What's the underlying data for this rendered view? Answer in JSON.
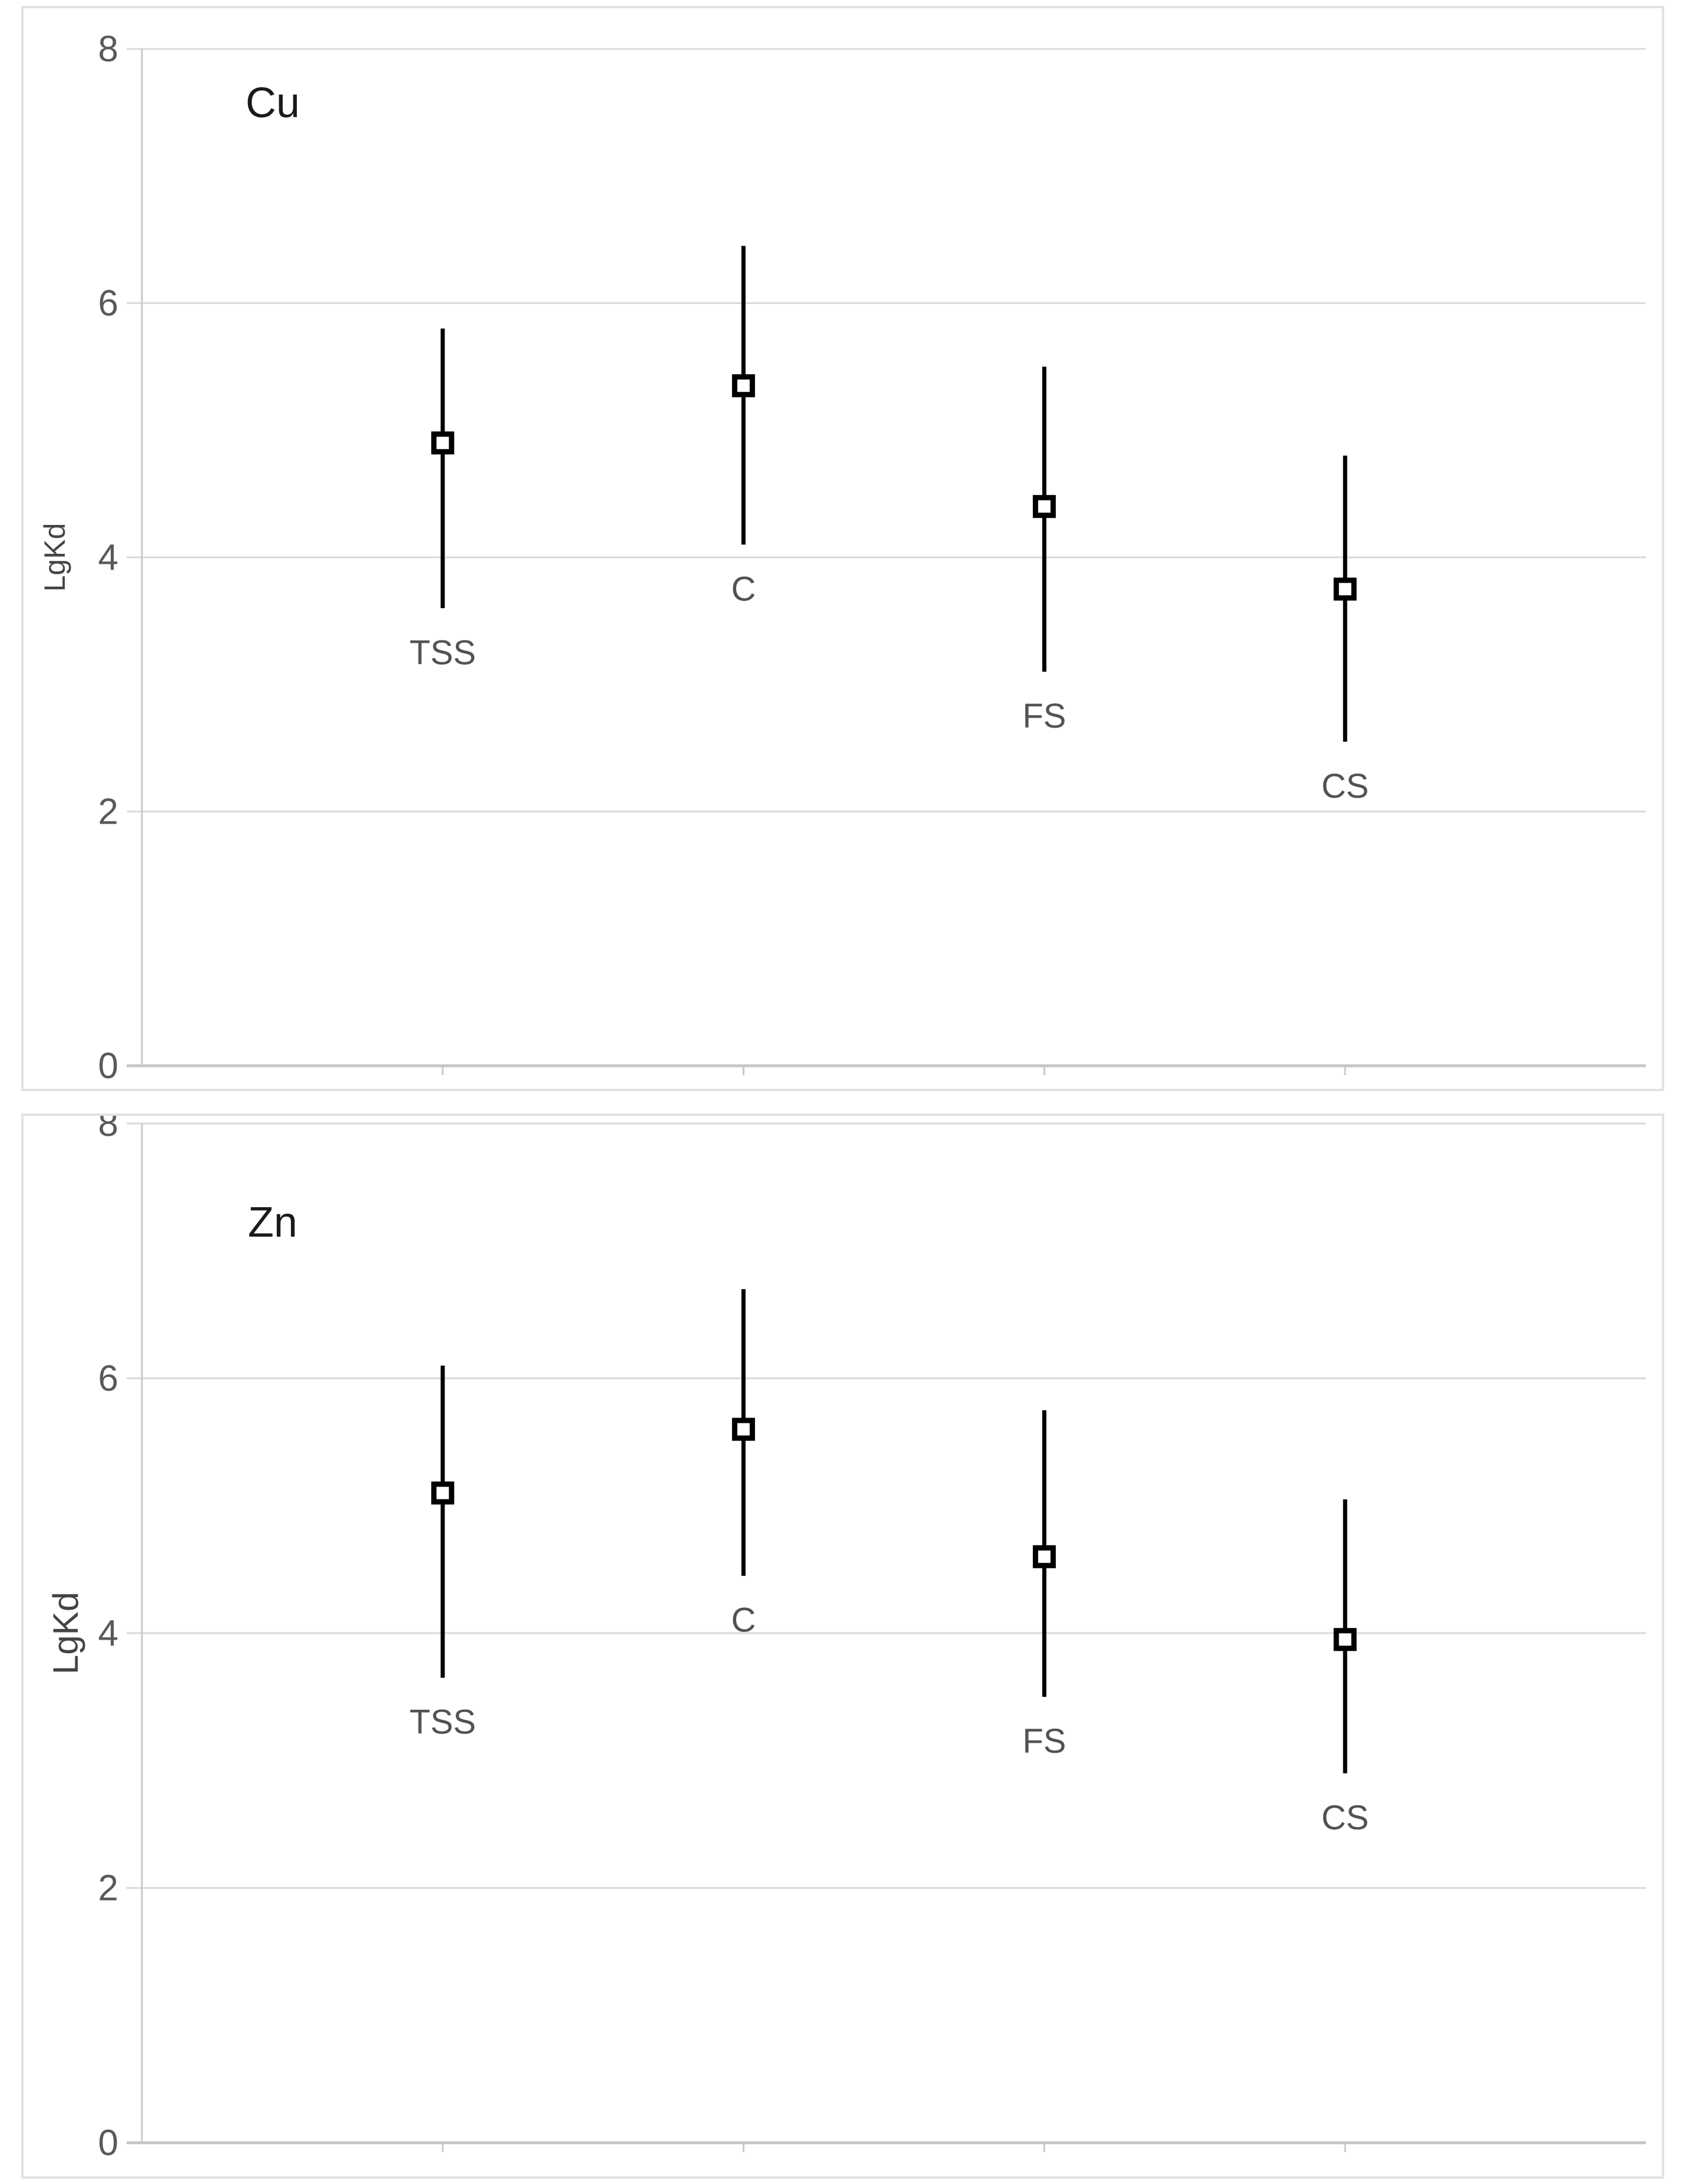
{
  "figure": {
    "description": "Two stacked scatter charts of LgKd (distribution coefficient, log) for Cu and Zn across four fractions, shown as open square markers with vertical min-max error bars",
    "background": "#ffffff"
  },
  "style": {
    "panel_border_color": "#e2e2e2",
    "gridline_color": "#dadada",
    "axis_line_color": "#c9c9c9",
    "zero_line_color": "#c6c6c6",
    "error_bar_color": "#000000",
    "marker_stroke_color": "#000000",
    "marker_fill_color": "#ffffff",
    "tick_label_color": "#595959",
    "category_label_color": "#525252",
    "title_color": "#1a1a1a",
    "ylabel_color": "#444444"
  },
  "chart_data": [
    {
      "type": "scatter",
      "title": "Cu",
      "ylabel": "LgKd",
      "xlabel": "",
      "ylim": [
        0,
        8
      ],
      "yticks": [
        0,
        2,
        4,
        6,
        8
      ],
      "ytick_labels": [
        "0",
        "2",
        "4",
        "6",
        "8"
      ],
      "grid": true,
      "legend": "none",
      "marker": "open-square",
      "error_bars": "min-max range, no caps",
      "categories": [
        "TSS",
        "C",
        "FS",
        "CS"
      ],
      "series": [
        {
          "name": "Cu LgKd mean with range",
          "points": [
            {
              "category": "TSS",
              "mean": 4.9,
              "low": 3.6,
              "high": 5.8
            },
            {
              "category": "C",
              "mean": 5.35,
              "low": 4.1,
              "high": 6.45
            },
            {
              "category": "FS",
              "mean": 4.4,
              "low": 3.1,
              "high": 5.5
            },
            {
              "category": "CS",
              "mean": 3.75,
              "low": 2.55,
              "high": 4.8
            }
          ]
        }
      ]
    },
    {
      "type": "scatter",
      "title": "Zn",
      "ylabel": "LgKd",
      "xlabel": "",
      "ylim": [
        0,
        8
      ],
      "yticks": [
        0,
        2,
        4,
        6,
        8
      ],
      "ytick_labels": [
        "0",
        "2",
        "4",
        "6",
        "8"
      ],
      "grid": true,
      "legend": "none",
      "marker": "open-square",
      "error_bars": "min-max range, no caps",
      "categories": [
        "TSS",
        "C",
        "FS",
        "CS"
      ],
      "series": [
        {
          "name": "Zn LgKd mean with range",
          "points": [
            {
              "category": "TSS",
              "mean": 5.1,
              "low": 3.65,
              "high": 6.1
            },
            {
              "category": "C",
              "mean": 5.6,
              "low": 4.45,
              "high": 6.7
            },
            {
              "category": "FS",
              "mean": 4.6,
              "low": 3.5,
              "high": 5.75
            },
            {
              "category": "CS",
              "mean": 3.95,
              "low": 2.9,
              "high": 5.05
            }
          ]
        }
      ]
    }
  ]
}
